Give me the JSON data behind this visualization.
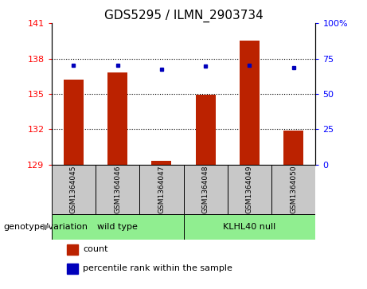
{
  "title": "GDS5295 / ILMN_2903734",
  "samples": [
    "GSM1364045",
    "GSM1364046",
    "GSM1364047",
    "GSM1364048",
    "GSM1364049",
    "GSM1364050"
  ],
  "counts": [
    136.2,
    136.8,
    129.3,
    134.9,
    139.5,
    131.9
  ],
  "percentile_ranks": [
    70.5,
    70.5,
    67.5,
    69.5,
    70.5,
    68.5
  ],
  "ylim_left": [
    129,
    141
  ],
  "ylim_right": [
    0,
    100
  ],
  "yticks_left": [
    129,
    132,
    135,
    138,
    141
  ],
  "yticks_right": [
    0,
    25,
    50,
    75,
    100
  ],
  "ytick_labels_left": [
    "129",
    "132",
    "135",
    "138",
    "141"
  ],
  "ytick_labels_right": [
    "0",
    "25",
    "50",
    "75",
    "100%"
  ],
  "bar_color": "#BB2200",
  "dot_color": "#0000BB",
  "bar_base": 129,
  "genotype_label": "genotype/variation",
  "legend_count_label": "count",
  "legend_percentile_label": "percentile rank within the sample",
  "title_fontsize": 11,
  "tick_fontsize": 8,
  "sample_fontsize": 6.5,
  "group_fontsize": 8,
  "legend_fontsize": 8,
  "genotype_fontsize": 8,
  "group_wild_type": "wild type",
  "group_klhl40": "KLHL40 null",
  "gray_color": "#C8C8C8",
  "green_color": "#90EE90",
  "arrow_color": "#888888"
}
